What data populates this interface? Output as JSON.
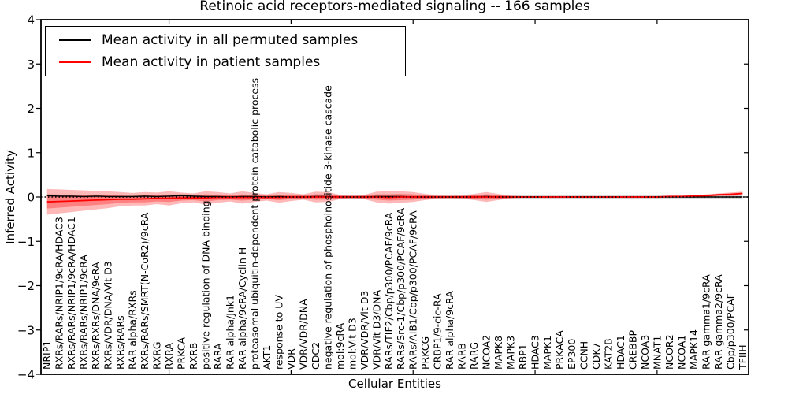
{
  "chart_data": {
    "type": "line",
    "title": "Retinoic acid receptors-mediated signaling -- 166 samples",
    "xlabel": "Cellular Entities",
    "ylabel": "Inferred Activity",
    "ylim": [
      -4,
      4
    ],
    "grid": false,
    "legend": {
      "position": "upper left",
      "entries": [
        {
          "label": "Mean activity in all permuted samples",
          "color": "#000000"
        },
        {
          "label": "Mean activity in patient samples",
          "color": "#ff0000"
        }
      ]
    },
    "yticks": {
      "values": [
        -4,
        -3,
        -2,
        -1,
        0,
        1,
        2,
        3,
        4
      ],
      "labels": [
        "−4",
        "−3",
        "−2",
        "−1",
        "0",
        "1",
        "2",
        "3",
        "4"
      ]
    },
    "xticks": {
      "values": [
        10,
        20,
        30,
        40,
        50
      ]
    },
    "categories": [
      "NRIP1",
      "RXRs/RARs/NRIP1/9cRA/HDAC3",
      "RXRs/RARs/NRIP1/9cRA/HDAC1",
      "RXRs/RARs/NRIP1/9cRA",
      "RXRs/RXRs/DNA/9cRA",
      "RXRs/VDR/DNA/Vit D3",
      "RXRs/RARs",
      "RAR alpha/RXRs",
      "RXRs/RARs/SMRT(N-CoR2)/9cRA",
      "RXRG",
      "RXRA",
      "PRKCA",
      "RXRB",
      "positive regulation of DNA binding",
      "RARA",
      "RAR alpha/Jnk1",
      "RAR alpha/9cRA/Cyclin H",
      "proteasomal ubiquitin-dependent protein catabolic process",
      "AKT1",
      "response to UV",
      "VDR",
      "VDR/VDR/DNA",
      "CDC2",
      "negative regulation of phosphoinositide 3-kinase cascade",
      "mol:9cRA",
      "mol:Vit D3",
      "VDR/VDR/Vit D3",
      "VDR/Vit D3/DNA",
      "RARs/TIF2/Cbp/p300/PCAF/9cRA",
      "RARs/Src-1/Cbp/p300/PCAF/9cRA",
      "RARs/AIB1/Cbp/p300/PCAF/9cRA",
      "PRKCG",
      "CRBP1/9-cic-RA",
      "RAR alpha/9cRA",
      "RARB",
      "RARG",
      "NCOA2",
      "MAPK8",
      "MAPK3",
      "RBP1",
      "HDAC3",
      "MAPK1",
      "PRKACA",
      "EP300",
      "CCNH",
      "CDK7",
      "KAT2B",
      "HDAC1",
      "CREBBP",
      "NCOA3",
      "MNAT1",
      "NCOR2",
      "NCOA1",
      "MAPK14",
      "RAR gamma1/9cRA",
      "RAR gamma2/9cRA",
      "Cbp/p300/PCAF",
      "TFIIH"
    ],
    "series": [
      {
        "name": "Mean activity in all permuted samples",
        "color": "#000000",
        "values": [
          0.03,
          0.02,
          0.02,
          0.01,
          0.02,
          0.01,
          0.01,
          0.01,
          0.02,
          0.01,
          0.02,
          0.03,
          0.02,
          0.01,
          0.01,
          0.0,
          0.01,
          0.01,
          0.0,
          0.01,
          0.0,
          0.0,
          0.01,
          0.01,
          0.0,
          0.0,
          0.0,
          0.01,
          0.01,
          0.01,
          0.0,
          0.0,
          0.0,
          0.0,
          0.0,
          0.0,
          0.01,
          0.0,
          0.0,
          0.0,
          0.0,
          0.0,
          0.0,
          0.0,
          0.0,
          0.0,
          0.0,
          0.0,
          0.0,
          0.0,
          0.0,
          0.0,
          0.0,
          0.0,
          0.0,
          0.0,
          0.0,
          0.0
        ]
      },
      {
        "name": "Mean activity in patient samples",
        "color": "#ff0000",
        "values": [
          -0.11,
          -0.1,
          -0.09,
          -0.08,
          -0.07,
          -0.06,
          -0.05,
          -0.05,
          -0.04,
          -0.03,
          -0.03,
          -0.02,
          -0.02,
          -0.02,
          -0.01,
          -0.01,
          -0.01,
          -0.01,
          -0.01,
          -0.01,
          0.0,
          0.0,
          0.0,
          0.0,
          0.0,
          0.0,
          0.0,
          0.0,
          -0.01,
          0.0,
          0.0,
          0.0,
          0.0,
          0.0,
          0.0,
          0.0,
          0.0,
          0.0,
          0.0,
          0.0,
          0.0,
          0.0,
          0.0,
          0.0,
          0.0,
          0.0,
          0.0,
          0.0,
          0.0,
          0.0,
          0.0,
          0.01,
          0.01,
          0.02,
          0.03,
          0.05,
          0.06,
          0.08
        ]
      }
    ],
    "bands": {
      "patient_outer": {
        "color": "#ff0000",
        "opacity": 0.28,
        "half_widths": [
          0.29,
          0.27,
          0.25,
          0.23,
          0.21,
          0.19,
          0.16,
          0.14,
          0.15,
          0.13,
          0.16,
          0.12,
          0.1,
          0.15,
          0.12,
          0.09,
          0.14,
          0.1,
          0.07,
          0.12,
          0.09,
          0.06,
          0.12,
          0.11,
          0.05,
          0.04,
          0.05,
          0.12,
          0.14,
          0.13,
          0.11,
          0.07,
          0.04,
          0.03,
          0.04,
          0.07,
          0.11,
          0.07,
          0.03,
          0.02,
          0.02,
          0.02,
          0.02,
          0.02,
          0.02,
          0.02,
          0.02,
          0.02,
          0.02,
          0.02,
          0.02,
          0.02,
          0.02,
          0.02,
          0.03,
          0.03,
          0.04,
          0.04
        ]
      },
      "patient_inner": {
        "color": "#ff0000",
        "opacity": 0.3,
        "half_widths": [
          0.15,
          0.14,
          0.13,
          0.12,
          0.11,
          0.1,
          0.08,
          0.07,
          0.08,
          0.07,
          0.08,
          0.06,
          0.05,
          0.08,
          0.06,
          0.05,
          0.07,
          0.05,
          0.04,
          0.06,
          0.05,
          0.03,
          0.06,
          0.06,
          0.03,
          0.02,
          0.03,
          0.06,
          0.07,
          0.07,
          0.06,
          0.04,
          0.02,
          0.02,
          0.02,
          0.04,
          0.06,
          0.04,
          0.02,
          0.01,
          0.01,
          0.01,
          0.01,
          0.01,
          0.01,
          0.01,
          0.01,
          0.01,
          0.01,
          0.01,
          0.01,
          0.01,
          0.01,
          0.01,
          0.02,
          0.02,
          0.02,
          0.02
        ]
      },
      "permuted_range": {
        "color": "#000000",
        "opacity": 0.15,
        "half_width": 0.035
      }
    },
    "zero_line": {
      "value": 0,
      "style": "dotted",
      "color": "#000000"
    }
  }
}
